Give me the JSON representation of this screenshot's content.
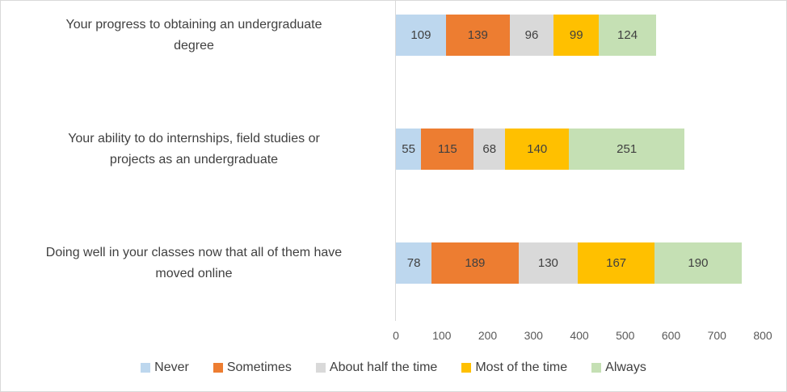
{
  "chart_data": {
    "type": "bar",
    "stacked": true,
    "orientation": "horizontal",
    "categories": [
      "Your progress to obtaining an undergraduate\ndegree",
      "Your ability to do internships, field studies or\nprojects as an undergraduate",
      "Doing well in your classes now that all of them have\nmoved online"
    ],
    "series": [
      {
        "name": "Never",
        "color": "#BDD7EE",
        "values": [
          109,
          55,
          78
        ]
      },
      {
        "name": "Sometimes",
        "color": "#ED7D31",
        "values": [
          139,
          115,
          189
        ]
      },
      {
        "name": "About half the time",
        "color": "#D9D9D9",
        "values": [
          96,
          68,
          130
        ]
      },
      {
        "name": "Most of the time",
        "color": "#FFC000",
        "values": [
          99,
          140,
          167
        ]
      },
      {
        "name": "Always",
        "color": "#C5E0B4",
        "values": [
          124,
          251,
          190
        ]
      }
    ],
    "x_axis": {
      "min": 0,
      "max": 800,
      "tick_step": 100,
      "tick_labels": [
        "0",
        "100",
        "200",
        "300",
        "400",
        "500",
        "600",
        "700",
        "800"
      ]
    },
    "legend": {
      "position": "bottom",
      "entries": [
        "Never",
        "Sometimes",
        "About half the time",
        "Most of the time",
        "Always"
      ]
    },
    "data_labels": true,
    "grid": false
  },
  "colors": {
    "label_text": "#404040",
    "tick_text": "#595959",
    "axis_line": "#D9D9D9",
    "border": "#D9D9D9",
    "background": "#FFFFFF"
  }
}
